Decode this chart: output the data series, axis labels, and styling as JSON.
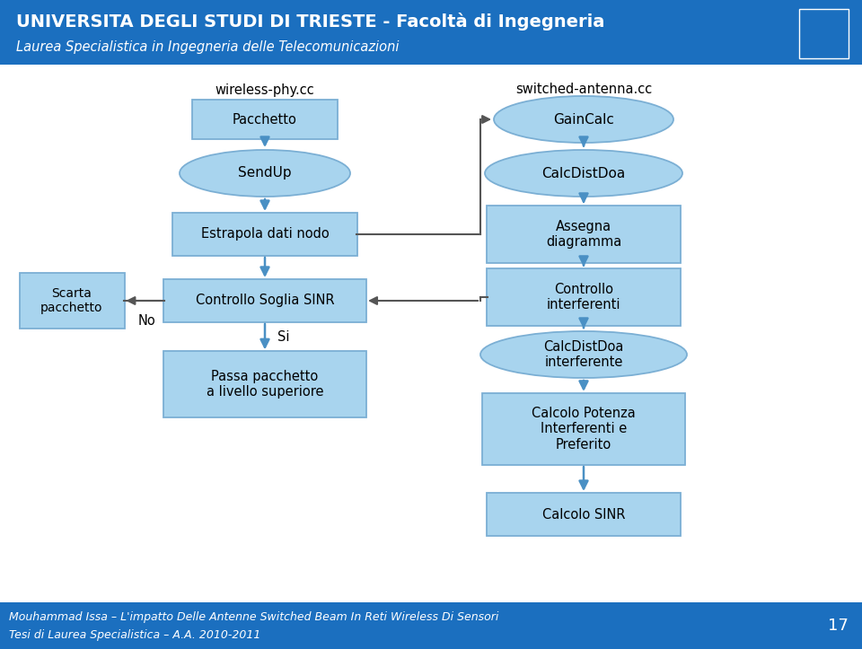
{
  "header_bg": "#1B6FBF",
  "header_title": "UNIVERSITA DEGLI STUDI DI TRIESTE - Facoltà di Ingegneria",
  "header_subtitle": "Laurea Specialistica in Ingegneria delle Telecomunicazioni",
  "footer_bg": "#1B6FBF",
  "footer_line1": "Mouhammad Issa – L'impatto Delle Antenne Switched Beam In Reti Wireless Di Sensori",
  "footer_line2": "Tesi di Laurea Specialistica – A.A. 2010-2011",
  "footer_page": "17",
  "label_wireless": "wireless-phy.cc",
  "label_switched": "switched-antenna.cc",
  "bg_color": "#FFFFFF",
  "box_fill": "#A8D4EE",
  "box_edge": "#7BAFD4",
  "ellipse_fill": "#A8D4EE",
  "ellipse_edge": "#7BAFD4",
  "arrow_color": "#4A90C4",
  "line_color": "#555555",
  "text_color": "#000000"
}
